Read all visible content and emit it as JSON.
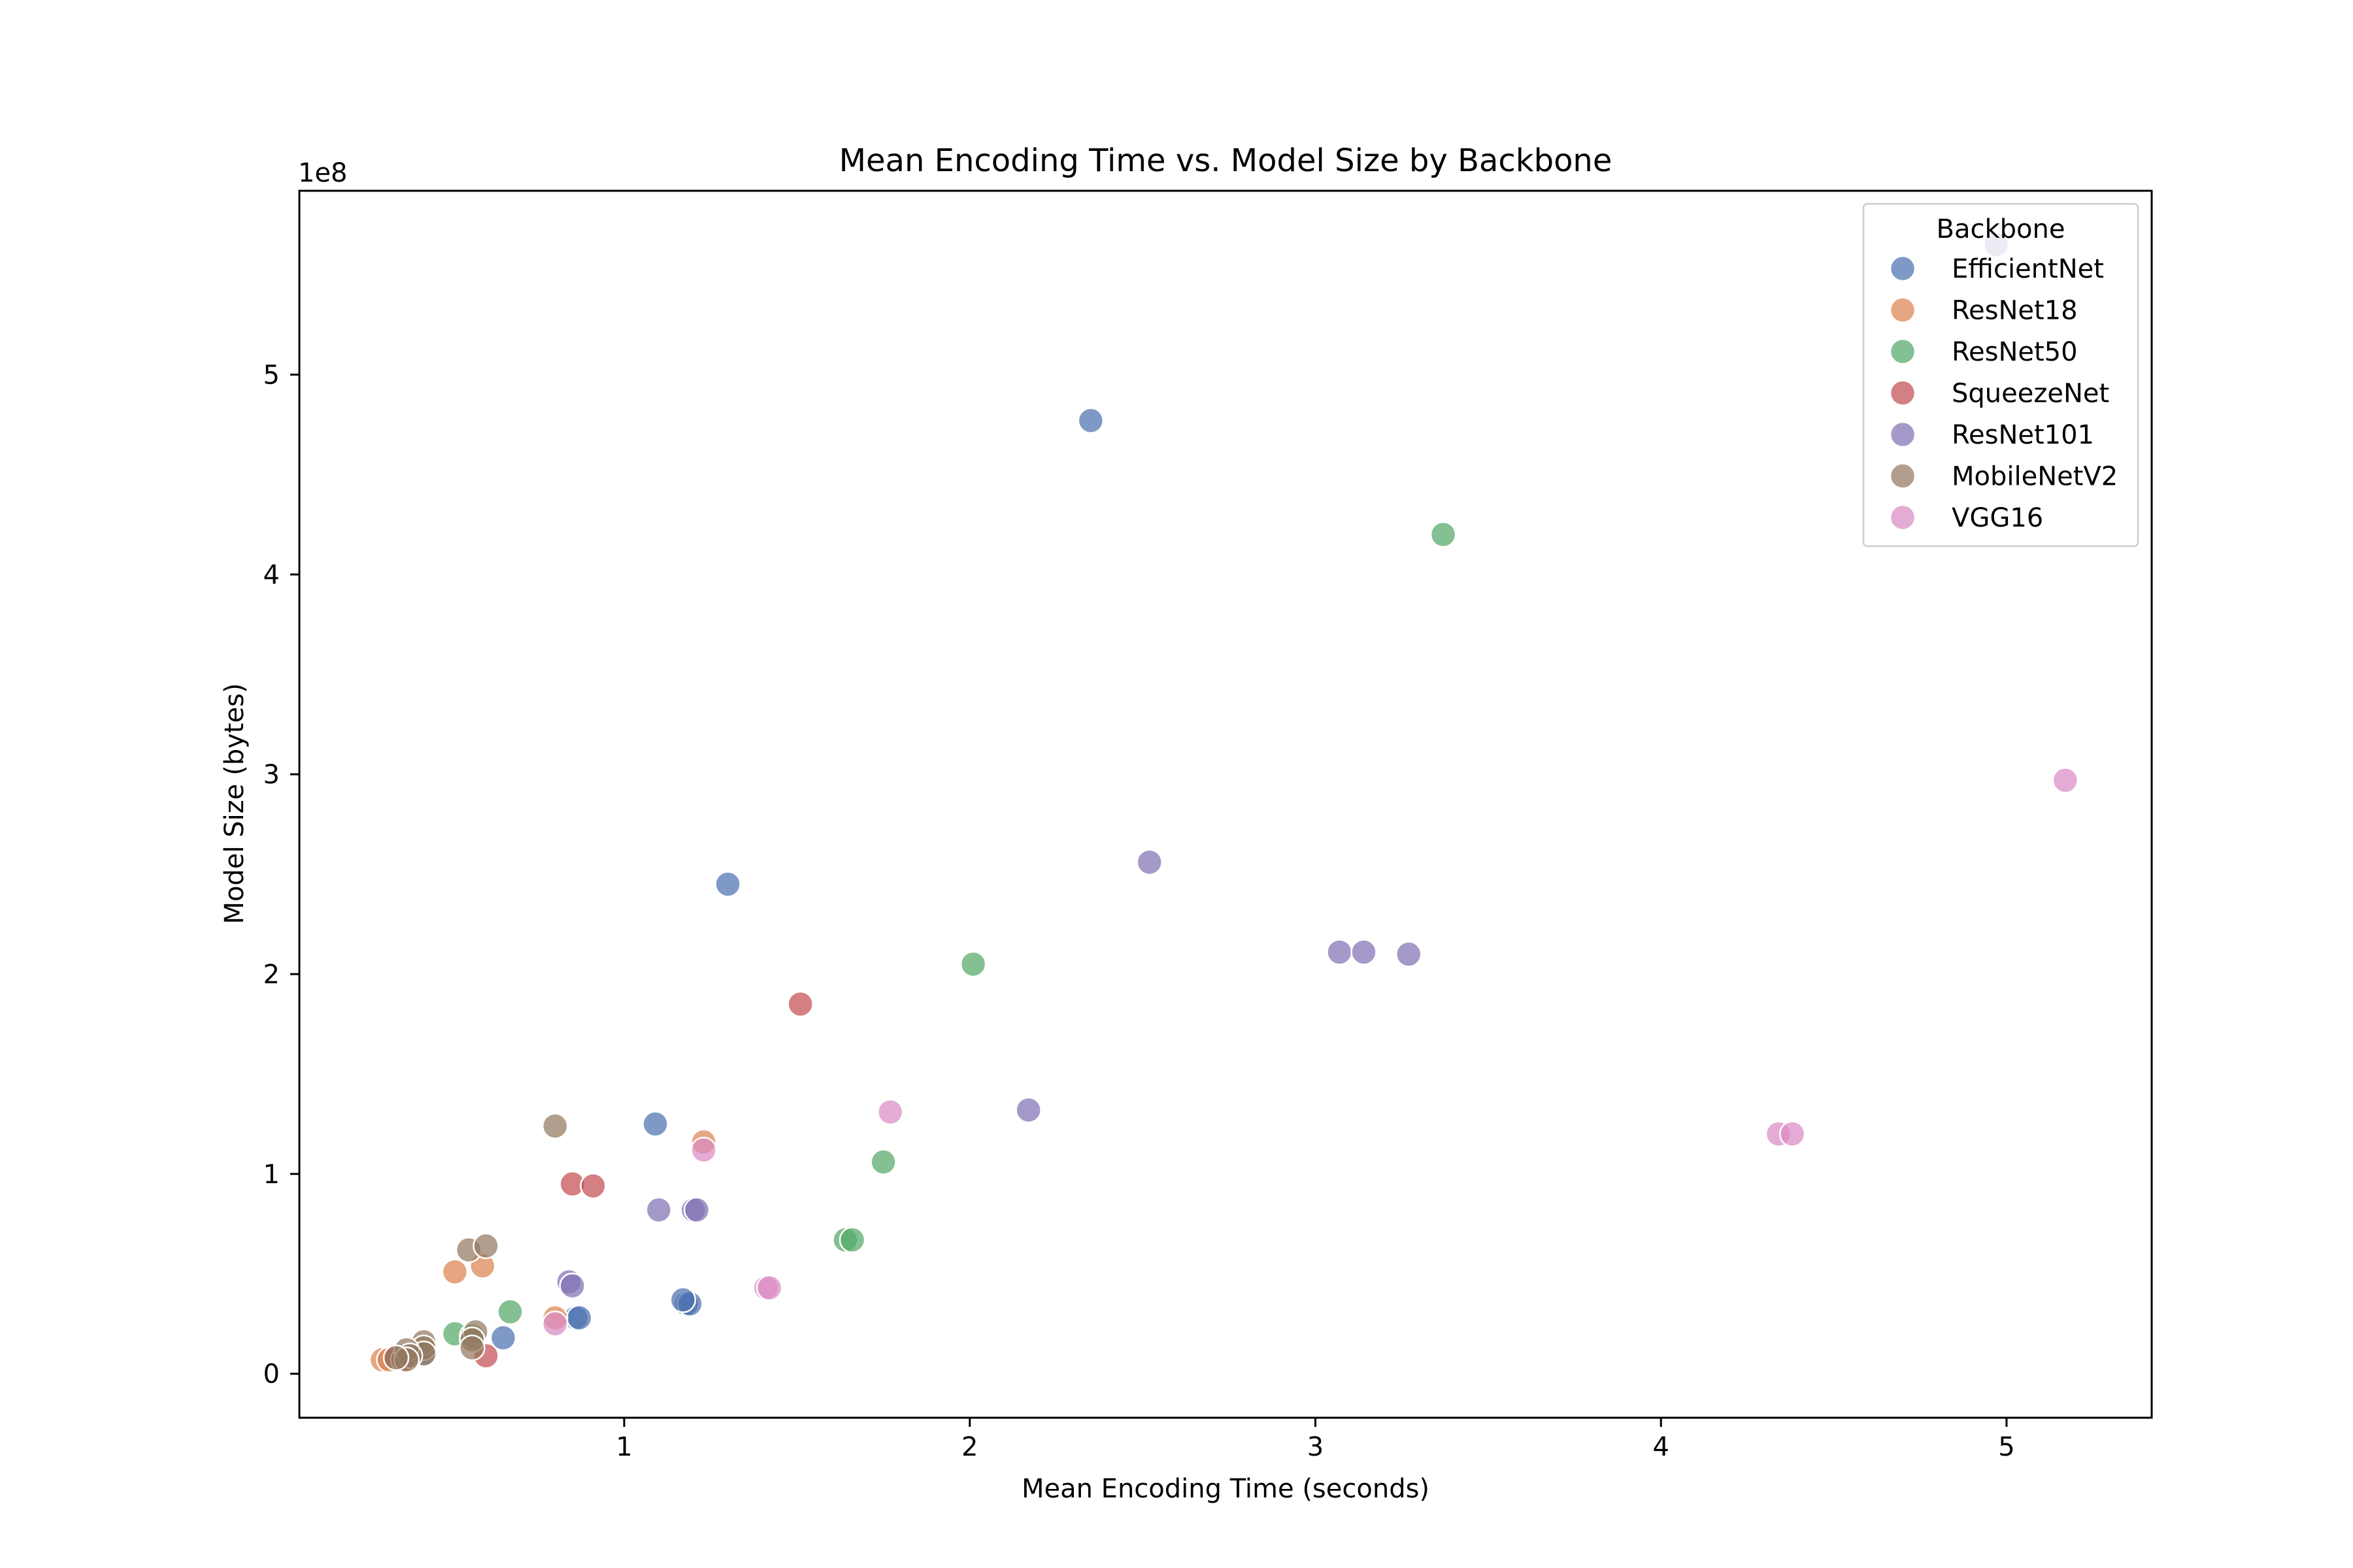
{
  "chart_data": {
    "type": "scatter",
    "title": "Mean Encoding Time vs. Model Size by Backbone",
    "xlabel": "Mean Encoding Time (seconds)",
    "ylabel": "Model Size (bytes)",
    "y_offset_label": "1e8",
    "xlim": [
      0.06,
      5.42
    ],
    "ylim": [
      -0.22,
      5.92
    ],
    "x_ticks": [
      1,
      2,
      3,
      4,
      5
    ],
    "y_ticks": [
      0,
      1,
      2,
      3,
      4,
      5
    ],
    "y_unit_multiplier": 100000000,
    "grid": false,
    "legend": {
      "title": "Backbone",
      "placement": "top-right"
    },
    "series": [
      {
        "name": "EfficientNet",
        "color": "#4c72b0",
        "points": [
          [
            2.35,
            4.77
          ],
          [
            1.3,
            2.45
          ],
          [
            1.09,
            1.25
          ],
          [
            1.18,
            0.35
          ],
          [
            1.19,
            0.35
          ],
          [
            1.17,
            0.37
          ],
          [
            0.86,
            0.28
          ],
          [
            0.87,
            0.28
          ],
          [
            0.65,
            0.18
          ],
          [
            0.42,
            0.1
          ]
        ]
      },
      {
        "name": "ResNet18",
        "color": "#dd8452",
        "points": [
          [
            1.23,
            1.16
          ],
          [
            0.51,
            0.51
          ],
          [
            0.59,
            0.54
          ],
          [
            0.8,
            0.28
          ],
          [
            0.3,
            0.07
          ],
          [
            0.32,
            0.07
          ]
        ]
      },
      {
        "name": "ResNet50",
        "color": "#55a868",
        "points": [
          [
            3.37,
            4.2
          ],
          [
            2.01,
            2.05
          ],
          [
            1.75,
            1.06
          ],
          [
            1.64,
            0.67
          ],
          [
            1.66,
            0.67
          ],
          [
            0.67,
            0.31
          ],
          [
            0.51,
            0.2
          ],
          [
            0.56,
            0.19
          ]
        ]
      },
      {
        "name": "SqueezeNet",
        "color": "#c44e52",
        "points": [
          [
            1.51,
            1.85
          ],
          [
            0.85,
            0.95
          ],
          [
            0.91,
            0.94
          ],
          [
            0.6,
            0.09
          ],
          [
            0.34,
            0.08
          ],
          [
            0.36,
            0.07
          ]
        ]
      },
      {
        "name": "ResNet101",
        "color": "#8172b3",
        "points": [
          [
            4.97,
            5.65
          ],
          [
            2.52,
            2.56
          ],
          [
            3.07,
            2.11
          ],
          [
            3.14,
            2.11
          ],
          [
            3.27,
            2.1
          ],
          [
            2.17,
            1.32
          ],
          [
            1.1,
            0.82
          ],
          [
            1.2,
            0.82
          ],
          [
            1.21,
            0.82
          ],
          [
            0.84,
            0.46
          ],
          [
            0.85,
            0.44
          ]
        ]
      },
      {
        "name": "MobileNetV2",
        "color": "#937860",
        "points": [
          [
            0.8,
            1.24
          ],
          [
            0.55,
            0.62
          ],
          [
            0.6,
            0.64
          ],
          [
            0.42,
            0.16
          ],
          [
            0.42,
            0.13
          ],
          [
            0.42,
            0.1
          ],
          [
            0.57,
            0.21
          ],
          [
            0.56,
            0.17
          ],
          [
            0.56,
            0.13
          ],
          [
            0.37,
            0.12
          ],
          [
            0.38,
            0.09
          ],
          [
            0.37,
            0.07
          ],
          [
            0.34,
            0.08
          ]
        ]
      },
      {
        "name": "VGG16",
        "color": "#da8bc3",
        "points": [
          [
            5.17,
            2.97
          ],
          [
            1.77,
            1.31
          ],
          [
            1.23,
            1.12
          ],
          [
            4.34,
            1.2
          ],
          [
            4.38,
            1.2
          ],
          [
            1.41,
            0.43
          ],
          [
            1.42,
            0.43
          ],
          [
            0.8,
            0.25
          ]
        ]
      }
    ]
  }
}
